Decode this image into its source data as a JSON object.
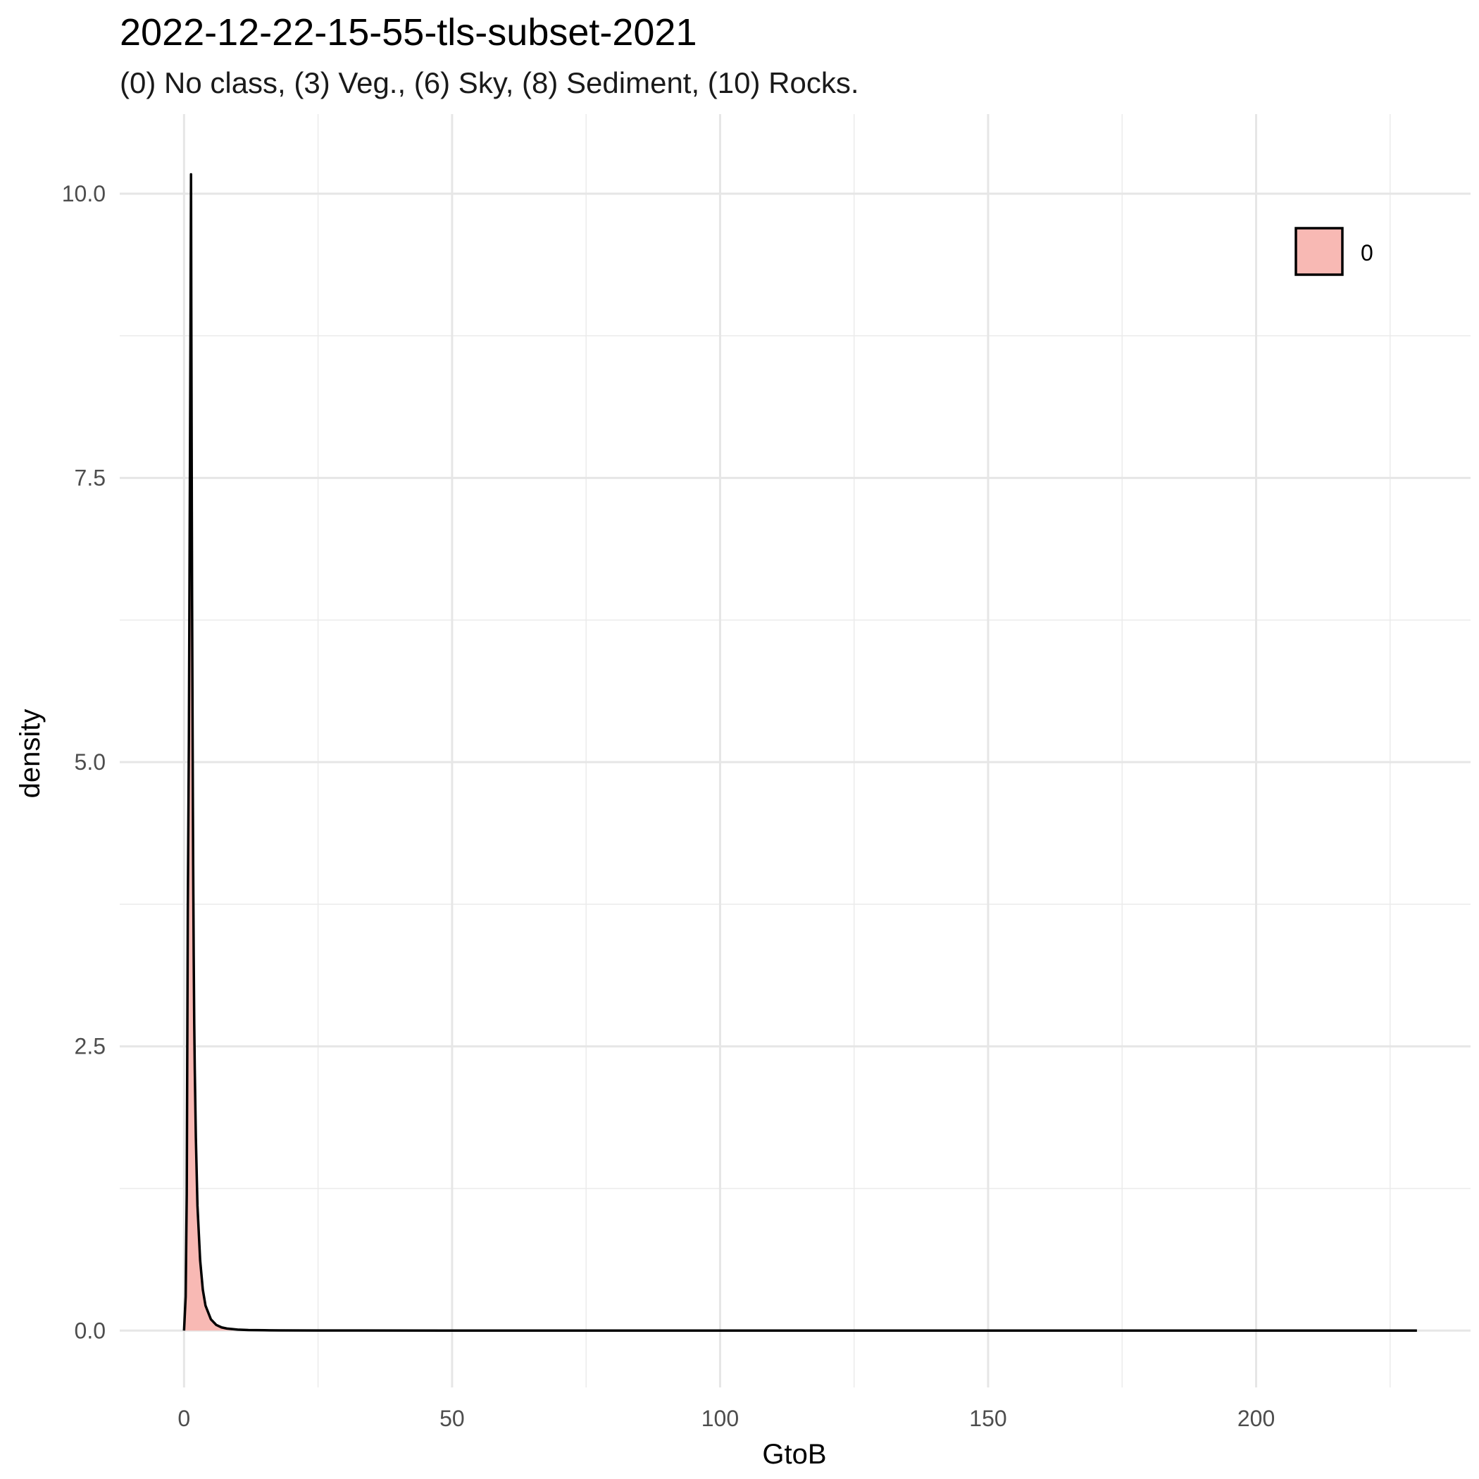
{
  "chart_data": {
    "type": "area",
    "title": "2022-12-22-15-55-tls-subset-2021",
    "subtitle": "(0) No class, (3) Veg., (6) Sky, (8) Sediment, (10) Rocks.",
    "xlabel": "GtoB",
    "ylabel": "density",
    "xlim": [
      -12,
      240
    ],
    "ylim": [
      -0.5,
      10.7
    ],
    "x_ticks": [
      0,
      50,
      100,
      150,
      200
    ],
    "y_ticks": [
      0.0,
      2.5,
      5.0,
      7.5,
      10.0
    ],
    "x_tick_labels": [
      "0",
      "50",
      "100",
      "150",
      "200"
    ],
    "y_tick_labels": [
      "0.0",
      "2.5",
      "5.0",
      "7.5",
      "10.0"
    ],
    "grid": true,
    "legend_position": "top-right",
    "series": [
      {
        "name": "0",
        "fill": "#F8B9B4",
        "stroke": "#000000",
        "x": [
          0.0,
          0.3,
          0.5,
          0.7,
          0.9,
          1.0,
          1.1,
          1.2,
          1.25,
          1.3,
          1.35,
          1.4,
          1.45,
          1.5,
          1.55,
          1.6,
          1.65,
          1.7,
          1.8,
          1.9,
          2.0,
          2.2,
          2.5,
          3.0,
          3.5,
          4.0,
          5.0,
          6.0,
          7.0,
          8.0,
          10.0,
          12.0,
          15.0,
          18.0,
          25.0,
          50.0,
          100.0,
          150.0,
          200.0,
          230.0
        ],
        "values": [
          0.0,
          0.3,
          1.2,
          3.7,
          5.2,
          6.4,
          7.6,
          8.8,
          9.5,
          10.17,
          9.0,
          8.1,
          7.2,
          6.4,
          5.8,
          5.2,
          4.6,
          4.1,
          3.3,
          2.7,
          2.3,
          1.7,
          1.1,
          0.62,
          0.36,
          0.22,
          0.1,
          0.05,
          0.028,
          0.018,
          0.009,
          0.005,
          0.003,
          0.002,
          0.001,
          0.0005,
          0.0002,
          0.0001,
          0.0001,
          0.0
        ]
      }
    ]
  }
}
